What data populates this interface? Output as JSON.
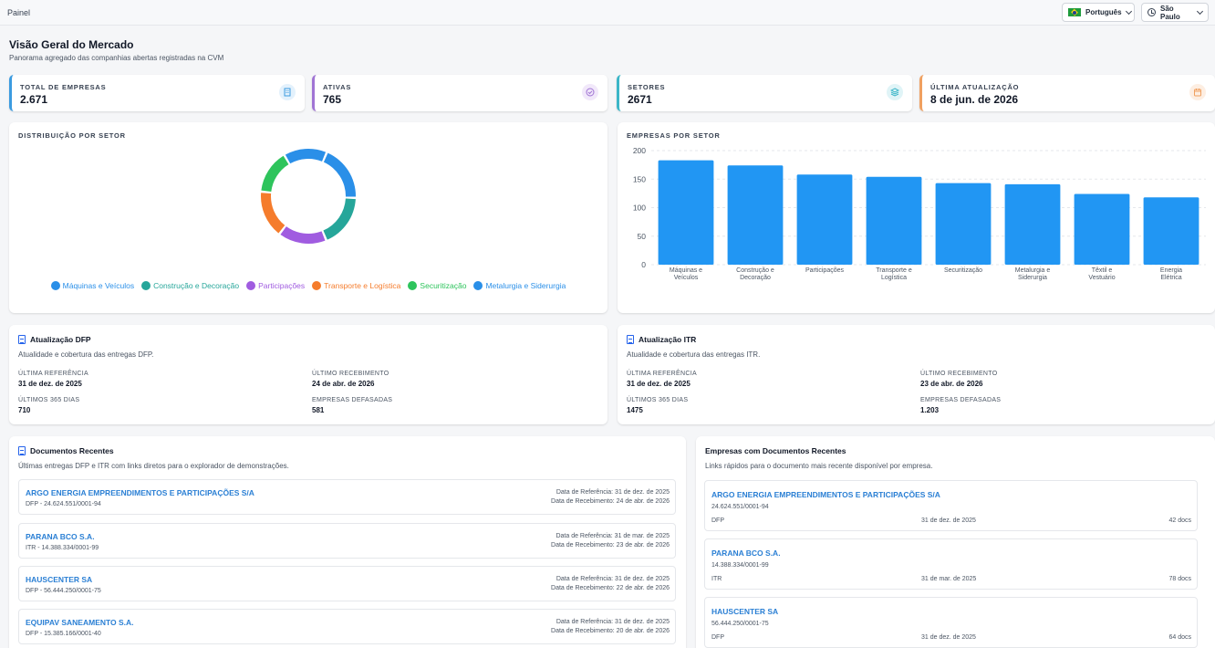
{
  "topbar": {
    "breadcrumb": "Painel",
    "language": "Português",
    "timezone": "São Paulo"
  },
  "header": {
    "title": "Visão Geral do Mercado",
    "subtitle": "Panorama agregado das companhias abertas registradas na CVM"
  },
  "kpis": [
    {
      "label": "TOTAL DE EMPRESAS",
      "value": "2.671",
      "color": "#3b9be0",
      "icon": "building-icon"
    },
    {
      "label": "ATIVAS",
      "value": "765",
      "color": "#a074d4",
      "icon": "check-circle-icon"
    },
    {
      "label": "SETORES",
      "value": "2671",
      "color": "#3bb6c8",
      "icon": "layers-icon"
    },
    {
      "label": "ÚLTIMA ATUALIZAÇÃO",
      "value": "8 de jun. de 2026",
      "color": "#f0a060",
      "icon": "calendar-icon"
    }
  ],
  "donut": {
    "caption": "DISTRIBUIÇÃO POR SETOR",
    "legend": [
      {
        "label": "Máquinas e Veículos",
        "color": "#2a8fe8"
      },
      {
        "label": "Construção e Decoração",
        "color": "#26a69a"
      },
      {
        "label": "Participações",
        "color": "#a05ce0"
      },
      {
        "label": "Transporte e Logística",
        "color": "#f57c2c"
      },
      {
        "label": "Securitização",
        "color": "#2ec45c"
      },
      {
        "label": "Metalurgia e Siderurgia",
        "color": "#2a8fe8"
      }
    ]
  },
  "bar_card": {
    "caption": "EMPRESAS POR SETOR"
  },
  "chart_data": {
    "type": "bar",
    "categories": [
      [
        "Máquinas e",
        "Veículos"
      ],
      [
        "Construção e",
        "Decoração"
      ],
      [
        "Participações"
      ],
      [
        "Transporte e",
        "Logística"
      ],
      [
        "Securitização"
      ],
      [
        "Metalurgia e",
        "Siderurgia"
      ],
      [
        "Têxtil e",
        "Vestuário"
      ],
      [
        "Energia",
        "Elétrica"
      ]
    ],
    "values": [
      183,
      174,
      158,
      154,
      143,
      141,
      124,
      118
    ],
    "yticks": [
      0,
      50,
      100,
      150,
      200
    ],
    "ylim": [
      0,
      200
    ],
    "color": "#2196f3",
    "grid": true
  },
  "dfp": {
    "title": "Atualização DFP",
    "subtitle": "Atualidade e cobertura das entregas DFP.",
    "last_ref_label": "ÚLTIMA REFERÊNCIA",
    "last_ref": "31 de dez. de 2025",
    "last_rec_label": "ÚLTIMO RECEBIMENTO",
    "last_rec": "24 de abr. de 2026",
    "last365_label": "ÚLTIMOS 365 DIAS",
    "last365": "710",
    "lagging_label": "EMPRESAS DEFASADAS",
    "lagging": "581"
  },
  "itr": {
    "title": "Atualização ITR",
    "subtitle": "Atualidade e cobertura das entregas ITR.",
    "last_ref_label": "ÚLTIMA REFERÊNCIA",
    "last_ref": "31 de dez. de 2025",
    "last_rec_label": "ÚLTIMO RECEBIMENTO",
    "last_rec": "23 de abr. de 2026",
    "last365_label": "ÚLTIMOS 365 DIAS",
    "last365": "1475",
    "lagging_label": "EMPRESAS DEFASADAS",
    "lagging": "1.203"
  },
  "recent_docs": {
    "title": "Documentos Recentes",
    "subtitle": "Últimas entregas DFP e ITR com links diretos para o explorador de demonstrações.",
    "items": [
      {
        "name": "ARGO ENERGIA EMPREENDIMENTOS E PARTICIPAÇÕES S/A",
        "meta": "DFP - 24.624.551/0001-94",
        "ref": "Data de Referência: 31 de dez. de 2025",
        "rec": "Data de Recebimento: 24 de abr. de 2026"
      },
      {
        "name": "PARANA BCO S.A.",
        "meta": "ITR - 14.388.334/0001-99",
        "ref": "Data de Referência: 31 de mar. de 2025",
        "rec": "Data de Recebimento: 23 de abr. de 2026"
      },
      {
        "name": "HAUSCENTER SA",
        "meta": "DFP - 56.444.250/0001-75",
        "ref": "Data de Referência: 31 de dez. de 2025",
        "rec": "Data de Recebimento: 22 de abr. de 2026"
      },
      {
        "name": "EQUIPAV SANEAMENTO S.A.",
        "meta": "DFP - 15.385.166/0001-40",
        "ref": "Data de Referência: 31 de dez. de 2025",
        "rec": "Data de Recebimento: 20 de abr. de 2026"
      }
    ]
  },
  "recent_companies": {
    "title": "Empresas com Documentos Recentes",
    "subtitle": "Links rápidos para o documento mais recente disponível por empresa.",
    "items": [
      {
        "name": "ARGO ENERGIA EMPREENDIMENTOS E PARTICIPAÇÕES S/A",
        "cnpj": "24.624.551/0001-94",
        "type": "DFP",
        "date": "31 de dez. de 2025",
        "count": "42 docs"
      },
      {
        "name": "PARANA BCO S.A.",
        "cnpj": "14.388.334/0001-99",
        "type": "ITR",
        "date": "31 de mar. de 2025",
        "count": "78 docs"
      },
      {
        "name": "HAUSCENTER SA",
        "cnpj": "56.444.250/0001-75",
        "type": "DFP",
        "date": "31 de dez. de 2025",
        "count": "64 docs"
      }
    ]
  }
}
